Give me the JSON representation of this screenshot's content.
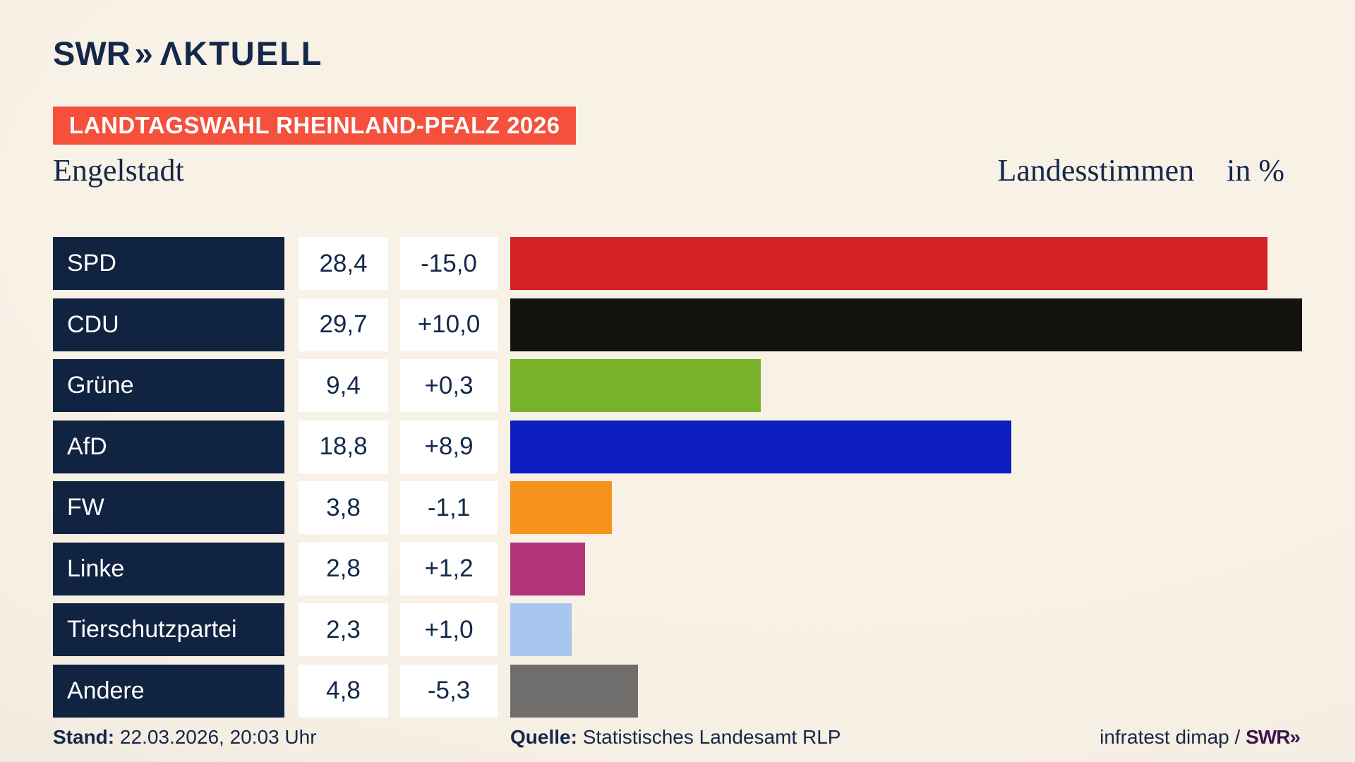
{
  "header": {
    "logo_swr": "SWR",
    "logo_chevrons": "»",
    "logo_aktuell": "ΛKTUELL",
    "badge": "LANDTAGSWAHL RHEINLAND-PFALZ 2026",
    "region": "Engelstadt",
    "measure": "Landesstimmen",
    "unit": "in %"
  },
  "chart_data": {
    "type": "bar",
    "orientation": "horizontal",
    "title": "Landtagswahl Rheinland-Pfalz 2026 – Engelstadt – Landesstimmen in %",
    "categories": [
      "SPD",
      "CDU",
      "Grüne",
      "AfD",
      "FW",
      "Linke",
      "Tierschutzpartei",
      "Andere"
    ],
    "values": [
      28.4,
      29.7,
      9.4,
      18.8,
      3.8,
      2.8,
      2.3,
      4.8
    ],
    "value_labels": [
      "28,4",
      "29,7",
      "9,4",
      "18,8",
      "3,8",
      "2,8",
      "2,3",
      "4,8"
    ],
    "change_labels": [
      "-15,0",
      "+10,0",
      "+0,3",
      "+8,9",
      "-1,1",
      "+1,2",
      "+1,0",
      "-5,3"
    ],
    "bar_colors": [
      "#d32222",
      "#151310",
      "#76b32a",
      "#0d1fc1",
      "#f7931d",
      "#b13478",
      "#a8c7ee",
      "#6f6e6c"
    ],
    "xlabel": "",
    "ylabel": "",
    "xlim": [
      0,
      30.1
    ],
    "grid": false,
    "legend": false
  },
  "footer": {
    "stand_label": "Stand:",
    "stand_value": "22.03.2026, 20:03 Uhr",
    "quelle_label": "Quelle:",
    "quelle_value": "Statistisches Landesamt RLP",
    "credit": "infratest dimap / ",
    "credit_brand": "SWR»"
  },
  "colors": {
    "background_cream": "#f7f0e5",
    "background_edge": "#c7c4c0",
    "navy_text": "#14284a",
    "label_box_navy": "#102340",
    "badge_red": "#f5503c",
    "cell_white": "#ffffff",
    "credit_purple": "#3a1650"
  }
}
